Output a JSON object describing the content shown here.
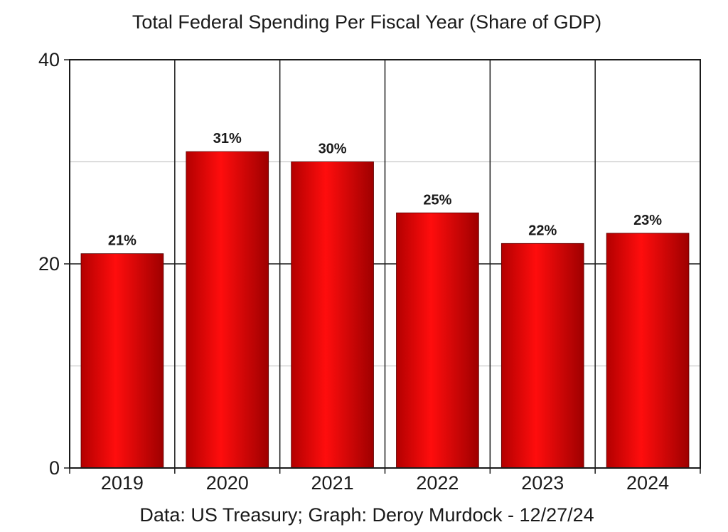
{
  "chart_data": {
    "type": "bar",
    "title": "Total Federal Spending Per Fiscal Year (Share of GDP)",
    "categories": [
      "2019",
      "2020",
      "2021",
      "2022",
      "2023",
      "2024"
    ],
    "values": [
      21,
      31,
      30,
      25,
      22,
      23
    ],
    "data_labels": [
      "21%",
      "31%",
      "30%",
      "25%",
      "22%",
      "23%"
    ],
    "xlabel": "",
    "ylabel": "",
    "ylim": [
      0,
      40
    ],
    "y_ticks": [
      0,
      20,
      40
    ],
    "y_minor_gridlines": [
      10,
      30
    ],
    "grid": true,
    "legend": "none",
    "source_note": "Data: US Treasury; Graph: Deroy Murdock - 12/27/24"
  },
  "colors": {
    "bar_dark": "#b80000",
    "bar_bright": "#ff0a0a",
    "axis": "#1a1a1a",
    "minor_grid": "#c8c8c8"
  }
}
